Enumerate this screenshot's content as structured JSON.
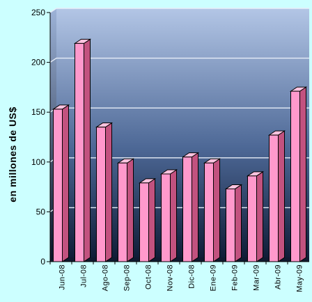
{
  "chart_data": {
    "type": "bar",
    "ylabel": "en millones de US$",
    "xlabel": "",
    "title": "",
    "ylim": [
      0,
      250
    ],
    "yticks": [
      0,
      50,
      100,
      150,
      200,
      250
    ],
    "grid": true,
    "categories": [
      "Jun-08",
      "Jul-08",
      "Ago-08",
      "Sep-08",
      "Oct-08",
      "Nov-08",
      "Dic-08",
      "Ene-09",
      "Feb-09",
      "Mar-09",
      "Abr-09",
      "May-09"
    ],
    "values": [
      153,
      219,
      135,
      99,
      79,
      88,
      105,
      99,
      73,
      86,
      127,
      171
    ],
    "colors": {
      "bar_front": "#ff99cc",
      "bar_side": "#c2527f",
      "bar_top": "#ffc4e0",
      "bar_outline": "#000000",
      "plot_top": "#b3c6e6",
      "plot_bottom": "#0e1a34",
      "background": "#ccffff",
      "gridline": "#e8eef8"
    }
  }
}
